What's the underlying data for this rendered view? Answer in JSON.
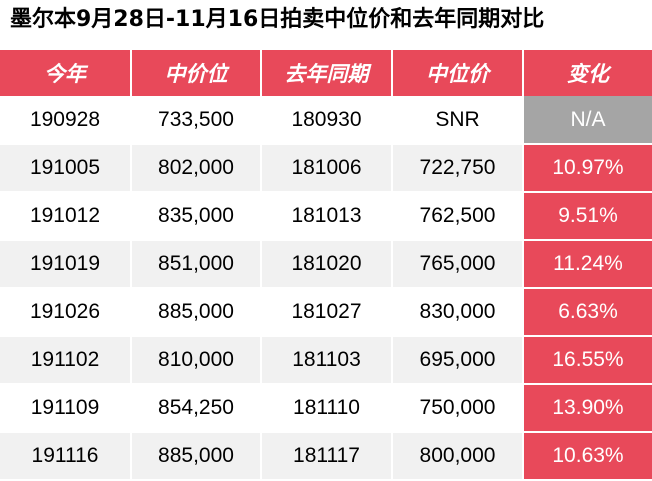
{
  "title": "墨尔本9月28日-11月16日拍卖中位价和去年同期对比",
  "chart_data": {
    "type": "table",
    "columns": [
      "今年",
      "中价位",
      "去年同期",
      "中位价",
      "变化"
    ],
    "rows": [
      [
        "190928",
        "733,500",
        "180930",
        "SNR",
        "N/A"
      ],
      [
        "191005",
        "802,000",
        "181006",
        "722,750",
        "10.97%"
      ],
      [
        "191012",
        "835,000",
        "181013",
        "762,500",
        "9.51%"
      ],
      [
        "191019",
        "851,000",
        "181020",
        "765,000",
        "11.24%"
      ],
      [
        "191026",
        "885,000",
        "181027",
        "830,000",
        "6.63%"
      ],
      [
        "191102",
        "810,000",
        "181103",
        "695,000",
        "16.55%"
      ],
      [
        "191109",
        "854,250",
        "181110",
        "750,000",
        "13.90%"
      ],
      [
        "191116",
        "885,000",
        "181117",
        "800,000",
        "10.63%"
      ]
    ]
  },
  "colors": {
    "header_bg": "#e8495a",
    "change_bg": "#e8495a",
    "na_bg": "#a5a5a5",
    "stripe_bg": "#f1f1f1"
  }
}
